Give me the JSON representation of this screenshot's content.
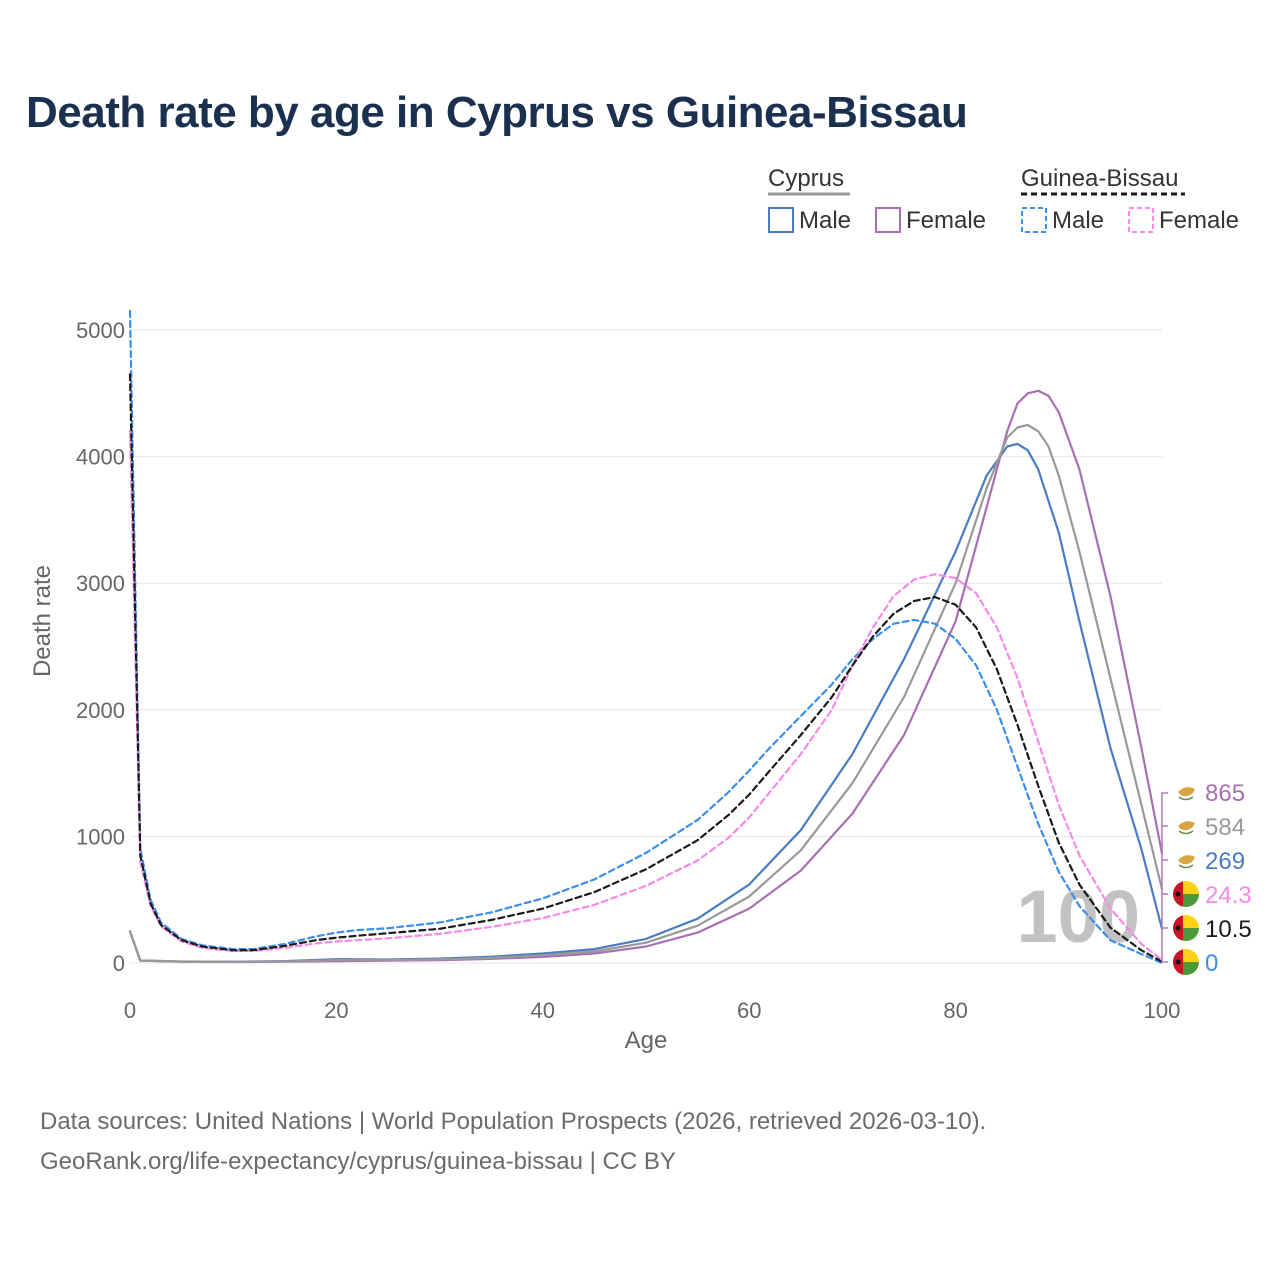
{
  "title": "Death rate by age in Cyprus vs Guinea-Bissau",
  "footer": {
    "sources": "Data sources: United Nations | World Population Prospects (2026, retrieved 2026-03-10).",
    "link": "GeoRank.org/life-expectancy/cyprus/guinea-bissau | CC BY"
  },
  "legend": {
    "groups": [
      {
        "name": "Cyprus",
        "style": "solid",
        "items": [
          "Male",
          "Female"
        ]
      },
      {
        "name": "Guinea-Bissau",
        "style": "dashed",
        "items": [
          "Male",
          "Female"
        ]
      }
    ]
  },
  "watermark": "100",
  "colors": {
    "cyprus_male": "#4a7cc4",
    "cyprus_female": "#a86fb3",
    "cyprus_total": "#999999",
    "gb_male": "#3b8eea",
    "gb_female": "#f58ae9",
    "gb_total": "#1a1a1a",
    "grid": "#e6e6e6",
    "axis_text": "#666666",
    "title": "#1b2f4e"
  },
  "chart_data": {
    "type": "line",
    "title": "Death rate by age in Cyprus vs Guinea-Bissau",
    "xlabel": "Age",
    "ylabel": "Death rate",
    "xlim": [
      0,
      100
    ],
    "ylim": [
      0,
      5000
    ],
    "xticks": [
      0,
      20,
      40,
      60,
      80,
      100
    ],
    "yticks": [
      0,
      1000,
      2000,
      3000,
      4000,
      5000
    ],
    "grid": true,
    "series": [
      {
        "name": "Cyprus Male",
        "country": "Cyprus",
        "sex": "Male",
        "color_key": "cyprus_male",
        "dashed": false,
        "end_label": "269",
        "points": [
          [
            0,
            250
          ],
          [
            1,
            20
          ],
          [
            5,
            12
          ],
          [
            10,
            10
          ],
          [
            15,
            15
          ],
          [
            20,
            30
          ],
          [
            25,
            28
          ],
          [
            30,
            35
          ],
          [
            35,
            50
          ],
          [
            40,
            75
          ],
          [
            45,
            110
          ],
          [
            50,
            190
          ],
          [
            55,
            350
          ],
          [
            60,
            620
          ],
          [
            65,
            1050
          ],
          [
            70,
            1650
          ],
          [
            75,
            2400
          ],
          [
            80,
            3250
          ],
          [
            83,
            3850
          ],
          [
            85,
            4080
          ],
          [
            86,
            4100
          ],
          [
            87,
            4050
          ],
          [
            88,
            3900
          ],
          [
            90,
            3400
          ],
          [
            92,
            2700
          ],
          [
            95,
            1700
          ],
          [
            98,
            900
          ],
          [
            100,
            269
          ]
        ]
      },
      {
        "name": "Cyprus Female",
        "country": "Cyprus",
        "sex": "Female",
        "color_key": "cyprus_female",
        "dashed": false,
        "end_label": "865",
        "points": [
          [
            0,
            250
          ],
          [
            1,
            18
          ],
          [
            5,
            10
          ],
          [
            10,
            8
          ],
          [
            15,
            10
          ],
          [
            20,
            15
          ],
          [
            25,
            18
          ],
          [
            30,
            22
          ],
          [
            35,
            32
          ],
          [
            40,
            48
          ],
          [
            45,
            75
          ],
          [
            50,
            130
          ],
          [
            55,
            240
          ],
          [
            60,
            430
          ],
          [
            65,
            730
          ],
          [
            70,
            1180
          ],
          [
            75,
            1800
          ],
          [
            80,
            2700
          ],
          [
            83,
            3600
          ],
          [
            85,
            4200
          ],
          [
            86,
            4420
          ],
          [
            87,
            4500
          ],
          [
            88,
            4520
          ],
          [
            89,
            4480
          ],
          [
            90,
            4350
          ],
          [
            92,
            3900
          ],
          [
            95,
            2900
          ],
          [
            98,
            1700
          ],
          [
            100,
            865
          ]
        ]
      },
      {
        "name": "Cyprus Total",
        "country": "Cyprus",
        "sex": "Total",
        "color_key": "cyprus_total",
        "dashed": false,
        "end_label": "584",
        "points": [
          [
            0,
            250
          ],
          [
            1,
            19
          ],
          [
            5,
            11
          ],
          [
            10,
            9
          ],
          [
            15,
            12
          ],
          [
            20,
            22
          ],
          [
            25,
            23
          ],
          [
            30,
            28
          ],
          [
            35,
            40
          ],
          [
            40,
            62
          ],
          [
            45,
            92
          ],
          [
            50,
            160
          ],
          [
            55,
            295
          ],
          [
            60,
            525
          ],
          [
            65,
            890
          ],
          [
            70,
            1420
          ],
          [
            75,
            2100
          ],
          [
            80,
            3000
          ],
          [
            83,
            3750
          ],
          [
            85,
            4150
          ],
          [
            86,
            4230
          ],
          [
            87,
            4250
          ],
          [
            88,
            4200
          ],
          [
            89,
            4080
          ],
          [
            90,
            3850
          ],
          [
            92,
            3250
          ],
          [
            95,
            2250
          ],
          [
            98,
            1250
          ],
          [
            100,
            584
          ]
        ]
      },
      {
        "name": "Guinea-Bissau Male",
        "country": "Guinea-Bissau",
        "sex": "Male",
        "color_key": "gb_male",
        "dashed": true,
        "end_label": "0",
        "points": [
          [
            0,
            5150
          ],
          [
            0.5,
            3000
          ],
          [
            1,
            900
          ],
          [
            2,
            500
          ],
          [
            3,
            320
          ],
          [
            5,
            190
          ],
          [
            7,
            140
          ],
          [
            10,
            110
          ],
          [
            12,
            110
          ],
          [
            15,
            150
          ],
          [
            18,
            210
          ],
          [
            20,
            240
          ],
          [
            22,
            260
          ],
          [
            25,
            275
          ],
          [
            30,
            320
          ],
          [
            35,
            400
          ],
          [
            40,
            510
          ],
          [
            45,
            660
          ],
          [
            50,
            870
          ],
          [
            55,
            1130
          ],
          [
            58,
            1350
          ],
          [
            60,
            1520
          ],
          [
            62,
            1700
          ],
          [
            65,
            1950
          ],
          [
            68,
            2200
          ],
          [
            70,
            2400
          ],
          [
            72,
            2560
          ],
          [
            74,
            2680
          ],
          [
            76,
            2710
          ],
          [
            78,
            2680
          ],
          [
            80,
            2560
          ],
          [
            82,
            2350
          ],
          [
            84,
            2000
          ],
          [
            86,
            1550
          ],
          [
            88,
            1100
          ],
          [
            90,
            720
          ],
          [
            92,
            450
          ],
          [
            95,
            180
          ],
          [
            98,
            70
          ],
          [
            100,
            0
          ]
        ]
      },
      {
        "name": "Guinea-Bissau Female",
        "country": "Guinea-Bissau",
        "sex": "Female",
        "color_key": "gb_female",
        "dashed": true,
        "end_label": "24.3",
        "points": [
          [
            0,
            4200
          ],
          [
            0.5,
            2500
          ],
          [
            1,
            800
          ],
          [
            2,
            450
          ],
          [
            3,
            290
          ],
          [
            5,
            170
          ],
          [
            7,
            120
          ],
          [
            10,
            95
          ],
          [
            12,
            95
          ],
          [
            15,
            120
          ],
          [
            18,
            155
          ],
          [
            20,
            170
          ],
          [
            25,
            195
          ],
          [
            30,
            230
          ],
          [
            35,
            285
          ],
          [
            40,
            355
          ],
          [
            45,
            460
          ],
          [
            50,
            610
          ],
          [
            55,
            810
          ],
          [
            58,
            990
          ],
          [
            60,
            1150
          ],
          [
            62,
            1350
          ],
          [
            65,
            1650
          ],
          [
            68,
            2000
          ],
          [
            70,
            2350
          ],
          [
            72,
            2650
          ],
          [
            74,
            2900
          ],
          [
            76,
            3030
          ],
          [
            78,
            3070
          ],
          [
            80,
            3040
          ],
          [
            82,
            2920
          ],
          [
            84,
            2650
          ],
          [
            86,
            2250
          ],
          [
            88,
            1750
          ],
          [
            90,
            1250
          ],
          [
            92,
            850
          ],
          [
            95,
            430
          ],
          [
            98,
            150
          ],
          [
            100,
            24.3
          ]
        ]
      },
      {
        "name": "Guinea-Bissau Total",
        "country": "Guinea-Bissau",
        "sex": "Total",
        "color_key": "gb_total",
        "dashed": true,
        "end_label": "10.5",
        "points": [
          [
            0,
            4650
          ],
          [
            0.5,
            2750
          ],
          [
            1,
            850
          ],
          [
            2,
            470
          ],
          [
            3,
            300
          ],
          [
            5,
            180
          ],
          [
            7,
            130
          ],
          [
            10,
            100
          ],
          [
            12,
            102
          ],
          [
            15,
            135
          ],
          [
            18,
            180
          ],
          [
            20,
            200
          ],
          [
            22,
            215
          ],
          [
            25,
            235
          ],
          [
            30,
            270
          ],
          [
            35,
            340
          ],
          [
            40,
            430
          ],
          [
            45,
            560
          ],
          [
            50,
            740
          ],
          [
            55,
            970
          ],
          [
            58,
            1170
          ],
          [
            60,
            1330
          ],
          [
            62,
            1520
          ],
          [
            65,
            1800
          ],
          [
            68,
            2100
          ],
          [
            70,
            2350
          ],
          [
            72,
            2580
          ],
          [
            74,
            2760
          ],
          [
            76,
            2860
          ],
          [
            78,
            2890
          ],
          [
            80,
            2830
          ],
          [
            82,
            2650
          ],
          [
            84,
            2320
          ],
          [
            86,
            1880
          ],
          [
            88,
            1400
          ],
          [
            90,
            950
          ],
          [
            92,
            620
          ],
          [
            95,
            280
          ],
          [
            98,
            100
          ],
          [
            100,
            10.5
          ]
        ]
      }
    ]
  }
}
